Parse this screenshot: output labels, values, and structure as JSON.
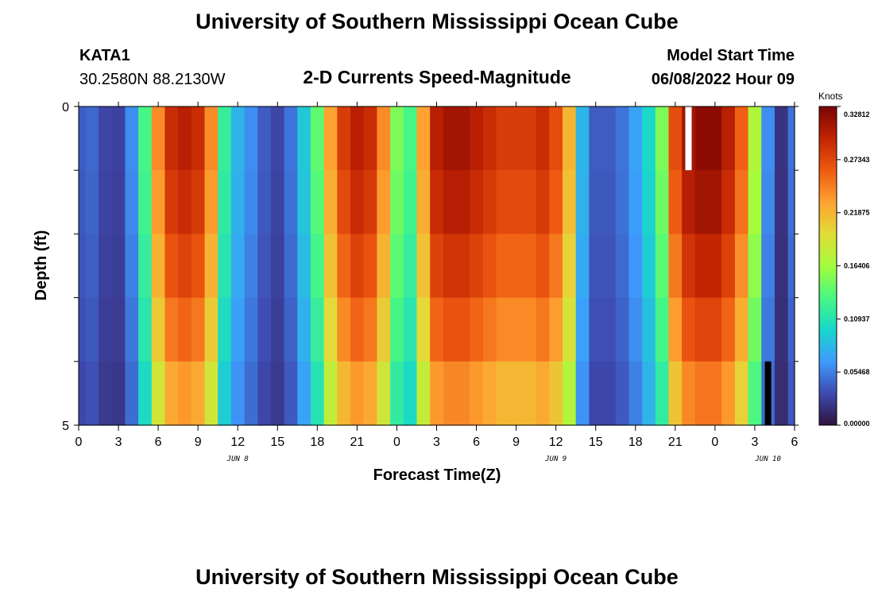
{
  "header": {
    "title": "University of Southern Mississippi Ocean Cube",
    "station": "KATA1",
    "coords": "30.2580N  88.2130W",
    "subtitle": "2-D Currents Speed-Magnitude",
    "model_start_label": "Model Start Time",
    "model_start_value": "06/08/2022 Hour 09"
  },
  "footer": {
    "title": "University of Southern Mississippi Ocean Cube"
  },
  "chart_data": {
    "type": "heatmap",
    "title": "2-D Currents Speed-Magnitude",
    "xlabel": "Forecast Time(Z)",
    "ylabel": "Depth (ft)",
    "x_hours_start": 0,
    "x_hours_end": 54,
    "x_step_hours": 1,
    "x_ticks": [
      {
        "hour": 0,
        "label": "0"
      },
      {
        "hour": 3,
        "label": "3"
      },
      {
        "hour": 6,
        "label": "6"
      },
      {
        "hour": 9,
        "label": "9"
      },
      {
        "hour": 12,
        "label": "12"
      },
      {
        "hour": 15,
        "label": "15"
      },
      {
        "hour": 18,
        "label": "18"
      },
      {
        "hour": 21,
        "label": "21"
      },
      {
        "hour": 24,
        "label": "0"
      },
      {
        "hour": 27,
        "label": "3"
      },
      {
        "hour": 30,
        "label": "6"
      },
      {
        "hour": 33,
        "label": "9"
      },
      {
        "hour": 36,
        "label": "12"
      },
      {
        "hour": 39,
        "label": "15"
      },
      {
        "hour": 42,
        "label": "18"
      },
      {
        "hour": 45,
        "label": "21"
      },
      {
        "hour": 48,
        "label": "0"
      },
      {
        "hour": 51,
        "label": "3"
      },
      {
        "hour": 54,
        "label": "6"
      }
    ],
    "date_labels": [
      {
        "hour": 12,
        "label": "JUN 8"
      },
      {
        "hour": 36,
        "label": "JUN 9"
      },
      {
        "hour": 52,
        "label": "JUN 10"
      }
    ],
    "ylim": [
      0,
      5
    ],
    "y_tick_labels": [
      {
        "value": 0,
        "label": "0"
      },
      {
        "value": 5,
        "label": "5"
      }
    ],
    "depth_levels": [
      0,
      1,
      2,
      3,
      4
    ],
    "surface_speed": [
      0.04,
      0.045,
      0.03,
      0.028,
      0.06,
      0.13,
      0.24,
      0.29,
      0.3,
      0.29,
      0.24,
      0.12,
      0.08,
      0.06,
      0.04,
      0.03,
      0.05,
      0.09,
      0.14,
      0.23,
      0.28,
      0.3,
      0.29,
      0.24,
      0.15,
      0.13,
      0.23,
      0.3,
      0.31,
      0.31,
      0.3,
      0.29,
      0.28,
      0.28,
      0.28,
      0.29,
      0.27,
      0.22,
      0.08,
      0.04,
      0.04,
      0.05,
      0.07,
      0.1,
      0.15,
      0.27,
      0.31,
      0.32,
      0.32,
      0.3,
      0.26,
      0.17,
      0.06,
      0.02,
      0.05
    ],
    "depth_factors": [
      1.0,
      0.97,
      0.92,
      0.86,
      0.78
    ],
    "missing_cells": [
      {
        "hour": 46,
        "depth_level": 0,
        "fill": "white"
      },
      {
        "hour": 52,
        "depth_level": 4,
        "fill": "black"
      }
    ],
    "colorbar": {
      "unit": "Knots",
      "min": 0,
      "max": 0.32812,
      "tick_labels": [
        "0.00000",
        "0.05468",
        "0.10937",
        "0.16406",
        "0.21875",
        "0.27343",
        "0.32812"
      ]
    },
    "colormap": [
      "#30123b",
      "#3e4ab0",
      "#3e9bfe",
      "#18d7cb",
      "#48f882",
      "#a4fc3c",
      "#e2dc38",
      "#fea331",
      "#ef5911",
      "#c22403",
      "#7a0403"
    ]
  }
}
